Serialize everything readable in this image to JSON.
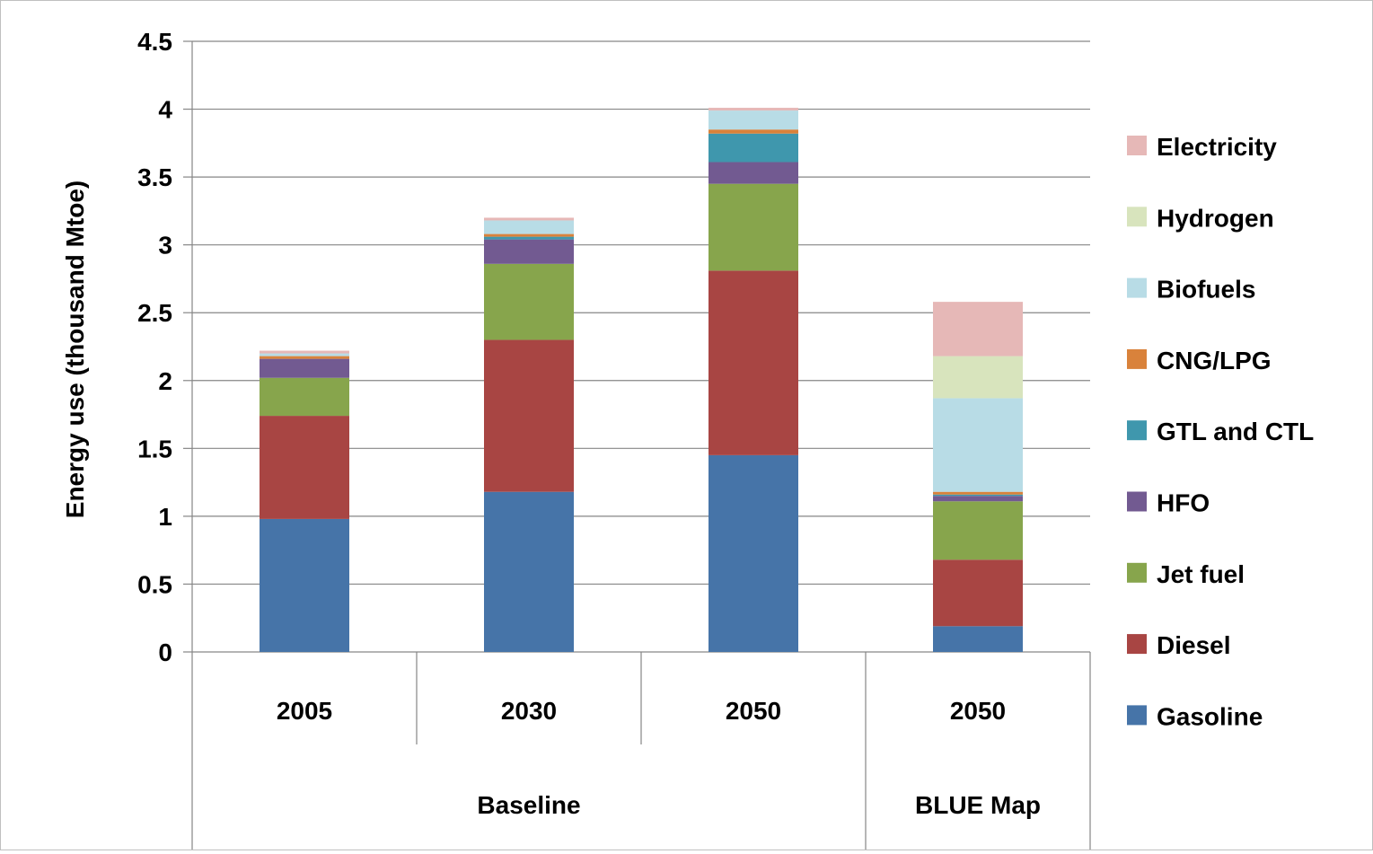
{
  "chart_data": {
    "type": "bar",
    "stacked": true,
    "title": "",
    "ylabel": "Energy use (thousand Mtoe)",
    "xlabel": "",
    "ylim": [
      0,
      4.5
    ],
    "yticks": [
      "0",
      "0.5",
      "1",
      "1.5",
      "2",
      "2.5",
      "3",
      "3.5",
      "4",
      "4.5"
    ],
    "categories": [
      "2005",
      "2030",
      "2050",
      "2050"
    ],
    "groups": [
      {
        "label": "Baseline",
        "span": 3
      },
      {
        "label": "BLUE Map",
        "span": 1
      }
    ],
    "grid": true,
    "legend_position": "right",
    "series": [
      {
        "name": "Gasoline",
        "color": "#4674a8",
        "values": [
          0.98,
          1.18,
          1.45,
          0.19
        ]
      },
      {
        "name": "Diesel",
        "color": "#a84543",
        "values": [
          0.76,
          1.12,
          1.36,
          0.49
        ]
      },
      {
        "name": "Jet fuel",
        "color": "#87a54c",
        "values": [
          0.28,
          0.56,
          0.64,
          0.43
        ]
      },
      {
        "name": "HFO",
        "color": "#725a91",
        "values": [
          0.14,
          0.18,
          0.16,
          0.04
        ]
      },
      {
        "name": "GTL and CTL",
        "color": "#3f97ad",
        "values": [
          0.0,
          0.02,
          0.21,
          0.01
        ]
      },
      {
        "name": "CNG/LPG",
        "color": "#d9823b",
        "values": [
          0.02,
          0.02,
          0.03,
          0.02
        ]
      },
      {
        "name": "Biofuels",
        "color": "#b8dce6",
        "values": [
          0.02,
          0.1,
          0.14,
          0.69
        ]
      },
      {
        "name": "Hydrogen",
        "color": "#d8e4bd",
        "values": [
          0.0,
          0.0,
          0.0,
          0.31
        ]
      },
      {
        "name": "Electricity",
        "color": "#e6b8b7",
        "values": [
          0.02,
          0.02,
          0.02,
          0.4
        ]
      }
    ]
  }
}
